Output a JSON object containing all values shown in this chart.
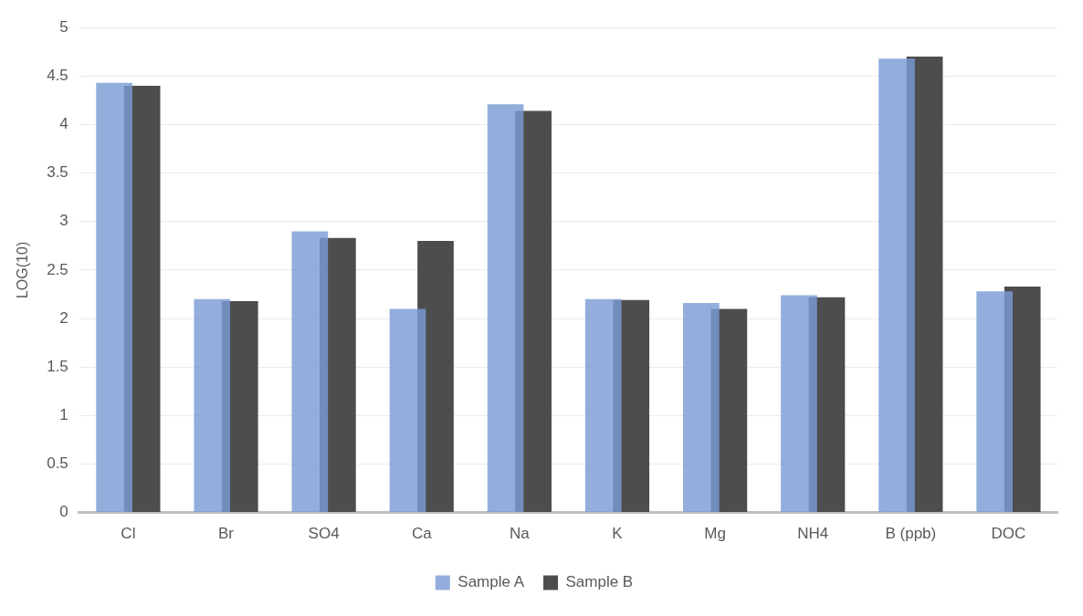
{
  "chart_data": {
    "type": "bar",
    "ylabel": "LOG(10)",
    "categories": [
      "Cl",
      "Br",
      "SO4",
      "Ca",
      "Na",
      "K",
      "Mg",
      "NH4",
      "B (ppb)",
      "DOC"
    ],
    "series": [
      {
        "name": "Sample A",
        "color": "#7a9cd4",
        "values": [
          4.43,
          2.2,
          2.9,
          2.1,
          4.21,
          2.2,
          2.16,
          2.24,
          4.68,
          2.28
        ]
      },
      {
        "name": "Sample B",
        "color": "#4d4d4d",
        "values": [
          4.4,
          2.18,
          2.83,
          2.8,
          4.14,
          2.19,
          2.1,
          2.22,
          4.7,
          2.33
        ]
      }
    ],
    "ylim": [
      0,
      5
    ],
    "yticks": [
      0,
      0.5,
      1,
      1.5,
      2,
      2.5,
      3,
      3.5,
      4,
      4.5,
      5
    ],
    "grid": "y",
    "legend": "bottom"
  }
}
